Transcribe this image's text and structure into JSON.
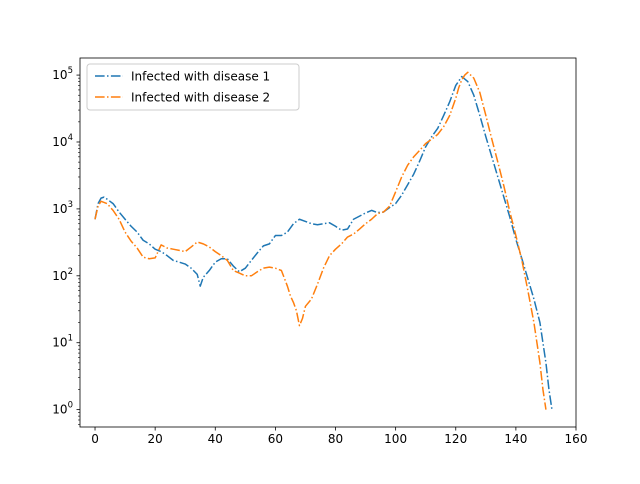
{
  "chart_data": {
    "type": "line",
    "title": "",
    "xlabel": "",
    "ylabel": "",
    "xlim": [
      -5,
      160
    ],
    "ylim": [
      0.55,
      180000
    ],
    "yscale": "log",
    "grid": false,
    "legend_position": "upper-left",
    "x_ticks": [
      0,
      20,
      40,
      60,
      80,
      100,
      120,
      140,
      160
    ],
    "x_tick_labels": [
      "0",
      "20",
      "40",
      "60",
      "80",
      "100",
      "120",
      "140",
      "160"
    ],
    "y_ticks": [
      1,
      10,
      100,
      1000,
      10000,
      100000
    ],
    "y_tick_exponents": [
      "0",
      "1",
      "2",
      "3",
      "4",
      "5"
    ],
    "y_tick_base": "10",
    "series": [
      {
        "name": "Infected with disease 1",
        "color": "#1f77b4",
        "linestyle": "dashdot",
        "x": [
          0,
          1,
          2,
          3,
          4,
          6,
          8,
          10,
          12,
          14,
          16,
          18,
          20,
          22,
          24,
          26,
          28,
          30,
          32,
          34,
          35,
          36,
          38,
          40,
          42,
          44,
          46,
          48,
          50,
          52,
          54,
          56,
          58,
          60,
          62,
          64,
          66,
          68,
          70,
          72,
          74,
          76,
          78,
          80,
          82,
          84,
          86,
          88,
          90,
          92,
          94,
          96,
          98,
          100,
          102,
          104,
          106,
          108,
          110,
          112,
          114,
          116,
          118,
          120,
          122,
          124,
          126,
          128,
          130,
          132,
          134,
          136,
          138,
          140,
          142,
          144,
          146,
          148,
          149,
          150,
          151,
          152
        ],
        "y": [
          700,
          1200,
          1450,
          1500,
          1400,
          1200,
          900,
          700,
          550,
          450,
          340,
          300,
          250,
          230,
          200,
          170,
          160,
          150,
          130,
          105,
          70,
          95,
          120,
          160,
          180,
          180,
          140,
          115,
          130,
          170,
          220,
          280,
          300,
          400,
          400,
          450,
          600,
          700,
          650,
          600,
          580,
          600,
          620,
          550,
          480,
          500,
          700,
          780,
          870,
          950,
          880,
          900,
          1050,
          1200,
          1600,
          2300,
          3300,
          5200,
          8500,
          12000,
          16000,
          25000,
          40000,
          70000,
          95000,
          80000,
          50000,
          25000,
          12000,
          6000,
          3000,
          1500,
          750,
          350,
          180,
          90,
          45,
          20,
          10,
          5,
          2,
          1
        ]
      },
      {
        "name": "Infected with disease 2",
        "color": "#ff7f0e",
        "linestyle": "dashdot",
        "x": [
          0,
          1,
          2,
          3,
          4,
          6,
          8,
          10,
          12,
          14,
          16,
          18,
          20,
          22,
          24,
          26,
          28,
          30,
          32,
          34,
          36,
          38,
          40,
          42,
          44,
          46,
          48,
          50,
          52,
          54,
          56,
          58,
          60,
          62,
          64,
          65,
          66,
          67,
          68,
          69,
          70,
          72,
          74,
          76,
          78,
          80,
          82,
          84,
          86,
          88,
          90,
          92,
          94,
          96,
          98,
          100,
          102,
          104,
          106,
          108,
          110,
          112,
          114,
          116,
          118,
          120,
          121,
          122,
          123,
          124,
          126,
          128,
          130,
          132,
          134,
          136,
          138,
          140,
          142,
          144,
          146,
          148,
          149,
          150
        ],
        "y": [
          700,
          1100,
          1300,
          1250,
          1200,
          950,
          700,
          450,
          330,
          260,
          190,
          180,
          185,
          290,
          260,
          250,
          240,
          230,
          270,
          320,
          300,
          270,
          230,
          200,
          170,
          120,
          110,
          100,
          100,
          115,
          130,
          135,
          130,
          120,
          70,
          50,
          40,
          30,
          18,
          23,
          35,
          45,
          75,
          130,
          200,
          250,
          300,
          380,
          420,
          500,
          600,
          700,
          850,
          900,
          1100,
          1800,
          3000,
          4500,
          6000,
          7500,
          9500,
          11000,
          13000,
          17000,
          25000,
          45000,
          65000,
          85000,
          100000,
          110000,
          90000,
          55000,
          25000,
          11000,
          5000,
          2200,
          900,
          400,
          170,
          60,
          20,
          5,
          2,
          1
        ]
      }
    ]
  }
}
